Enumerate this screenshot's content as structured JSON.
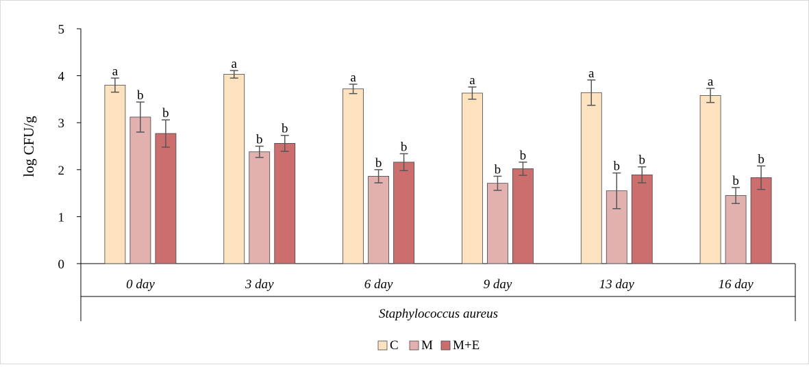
{
  "chart_data": {
    "type": "bar",
    "ylabel": "log CFU/g",
    "group_label": "Staphylococcus aureus",
    "ylim": [
      0,
      5
    ],
    "yticks": [
      0,
      1,
      2,
      3,
      4,
      5
    ],
    "grid": false,
    "legend_position": "bottom-center",
    "categories": [
      "0 day",
      "3 day",
      "6 day",
      "9 day",
      "13 day",
      "16 day"
    ],
    "series": [
      {
        "name": "C",
        "color": "#fde2bf",
        "values": [
          3.8,
          4.03,
          3.72,
          3.63,
          3.64,
          3.58
        ],
        "errors": [
          0.15,
          0.08,
          0.1,
          0.13,
          0.27,
          0.15
        ],
        "letters": [
          "a",
          "a",
          "a",
          "a",
          "a",
          "a"
        ]
      },
      {
        "name": "M",
        "color": "#e3b0b0",
        "values": [
          3.12,
          2.38,
          1.86,
          1.71,
          1.55,
          1.45
        ],
        "errors": [
          0.32,
          0.12,
          0.14,
          0.15,
          0.38,
          0.17
        ],
        "letters": [
          "b",
          "b",
          "b",
          "b",
          "b",
          "b"
        ]
      },
      {
        "name": "M+E",
        "color": "#cc6e6e",
        "values": [
          2.77,
          2.56,
          2.16,
          2.02,
          1.89,
          1.83
        ],
        "errors": [
          0.29,
          0.17,
          0.18,
          0.14,
          0.17,
          0.25
        ],
        "letters": [
          "b",
          "b",
          "b",
          "b",
          "b",
          "b"
        ]
      }
    ]
  }
}
